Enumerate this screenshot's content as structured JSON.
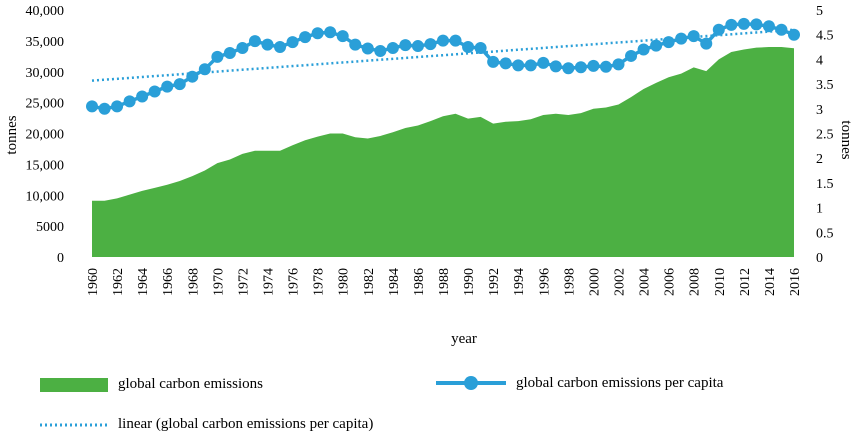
{
  "chart_data": {
    "type": "area+line",
    "xlabel": "year",
    "ylabel_left": "tonnes",
    "ylabel_right": "tonnes",
    "left_axis": {
      "min": 0,
      "max": 40000,
      "ticks": [
        "0",
        "5000",
        "10,000",
        "15,000",
        "20,000",
        "25,000",
        "30,000",
        "35,000",
        "40,000"
      ]
    },
    "right_axis": {
      "min": 0,
      "max": 5,
      "ticks": [
        "0",
        "0.5",
        "1",
        "1.5",
        "2",
        "2.5",
        "3",
        "3.5",
        "4",
        "4.5",
        "5"
      ]
    },
    "x_tick_labels": [
      "1960",
      "1962",
      "1964",
      "1966",
      "1968",
      "1970",
      "1972",
      "1974",
      "1976",
      "1978",
      "1980",
      "1982",
      "1984",
      "1986",
      "1988",
      "1990",
      "1992",
      "1994",
      "1996",
      "1998",
      "2000",
      "2002",
      "2004",
      "2006",
      "2008",
      "2010",
      "2012",
      "2014",
      "2016"
    ],
    "years": [
      1960,
      1961,
      1962,
      1963,
      1964,
      1965,
      1966,
      1967,
      1968,
      1969,
      1970,
      1971,
      1972,
      1973,
      1974,
      1975,
      1976,
      1977,
      1978,
      1979,
      1980,
      1981,
      1982,
      1983,
      1984,
      1985,
      1986,
      1987,
      1988,
      1989,
      1990,
      1991,
      1992,
      1993,
      1994,
      1995,
      1996,
      1997,
      1998,
      1999,
      2000,
      2001,
      2002,
      2003,
      2004,
      2005,
      2006,
      2007,
      2008,
      2009,
      2010,
      2011,
      2012,
      2013,
      2014,
      2015,
      2016
    ],
    "series": [
      {
        "name": "global carbon emissions",
        "type": "area",
        "axis": "left",
        "color": "#4cb043",
        "values": [
          9100,
          9100,
          9500,
          10100,
          10700,
          11200,
          11700,
          12300,
          13100,
          14000,
          15200,
          15800,
          16700,
          17200,
          17200,
          17200,
          18100,
          18900,
          19500,
          20000,
          20000,
          19400,
          19200,
          19600,
          20200,
          20900,
          21300,
          22000,
          22800,
          23200,
          22400,
          22700,
          21600,
          21900,
          22000,
          22300,
          23000,
          23200,
          23000,
          23300,
          24000,
          24200,
          24700,
          25900,
          27200,
          28200,
          29100,
          29700,
          30700,
          30100,
          32000,
          33200,
          33600,
          33900,
          34000,
          34000,
          33800
        ]
      },
      {
        "name": "global carbon emissions per capita",
        "type": "line",
        "axis": "right",
        "color": "#2a9fd8",
        "values": [
          3.05,
          3.0,
          3.05,
          3.15,
          3.25,
          3.35,
          3.45,
          3.5,
          3.65,
          3.8,
          4.05,
          4.13,
          4.23,
          4.37,
          4.3,
          4.25,
          4.35,
          4.45,
          4.53,
          4.55,
          4.47,
          4.3,
          4.22,
          4.17,
          4.23,
          4.29,
          4.27,
          4.31,
          4.38,
          4.38,
          4.25,
          4.23,
          3.95,
          3.92,
          3.88,
          3.88,
          3.93,
          3.86,
          3.82,
          3.84,
          3.87,
          3.85,
          3.9,
          4.07,
          4.2,
          4.28,
          4.35,
          4.42,
          4.47,
          4.32,
          4.6,
          4.7,
          4.72,
          4.71,
          4.67,
          4.6,
          4.5
        ]
      },
      {
        "name": "linear (global carbon emissions per capita)",
        "type": "trendline",
        "axis": "right",
        "color": "#2a9fd8",
        "start": [
          1960,
          3.57
        ],
        "end": [
          2016,
          4.6
        ]
      }
    ],
    "legend": {
      "area_label": "global carbon emissions",
      "line_label": "global carbon emissions per capita",
      "trend_label": "linear (global carbon emissions per capita)"
    }
  }
}
